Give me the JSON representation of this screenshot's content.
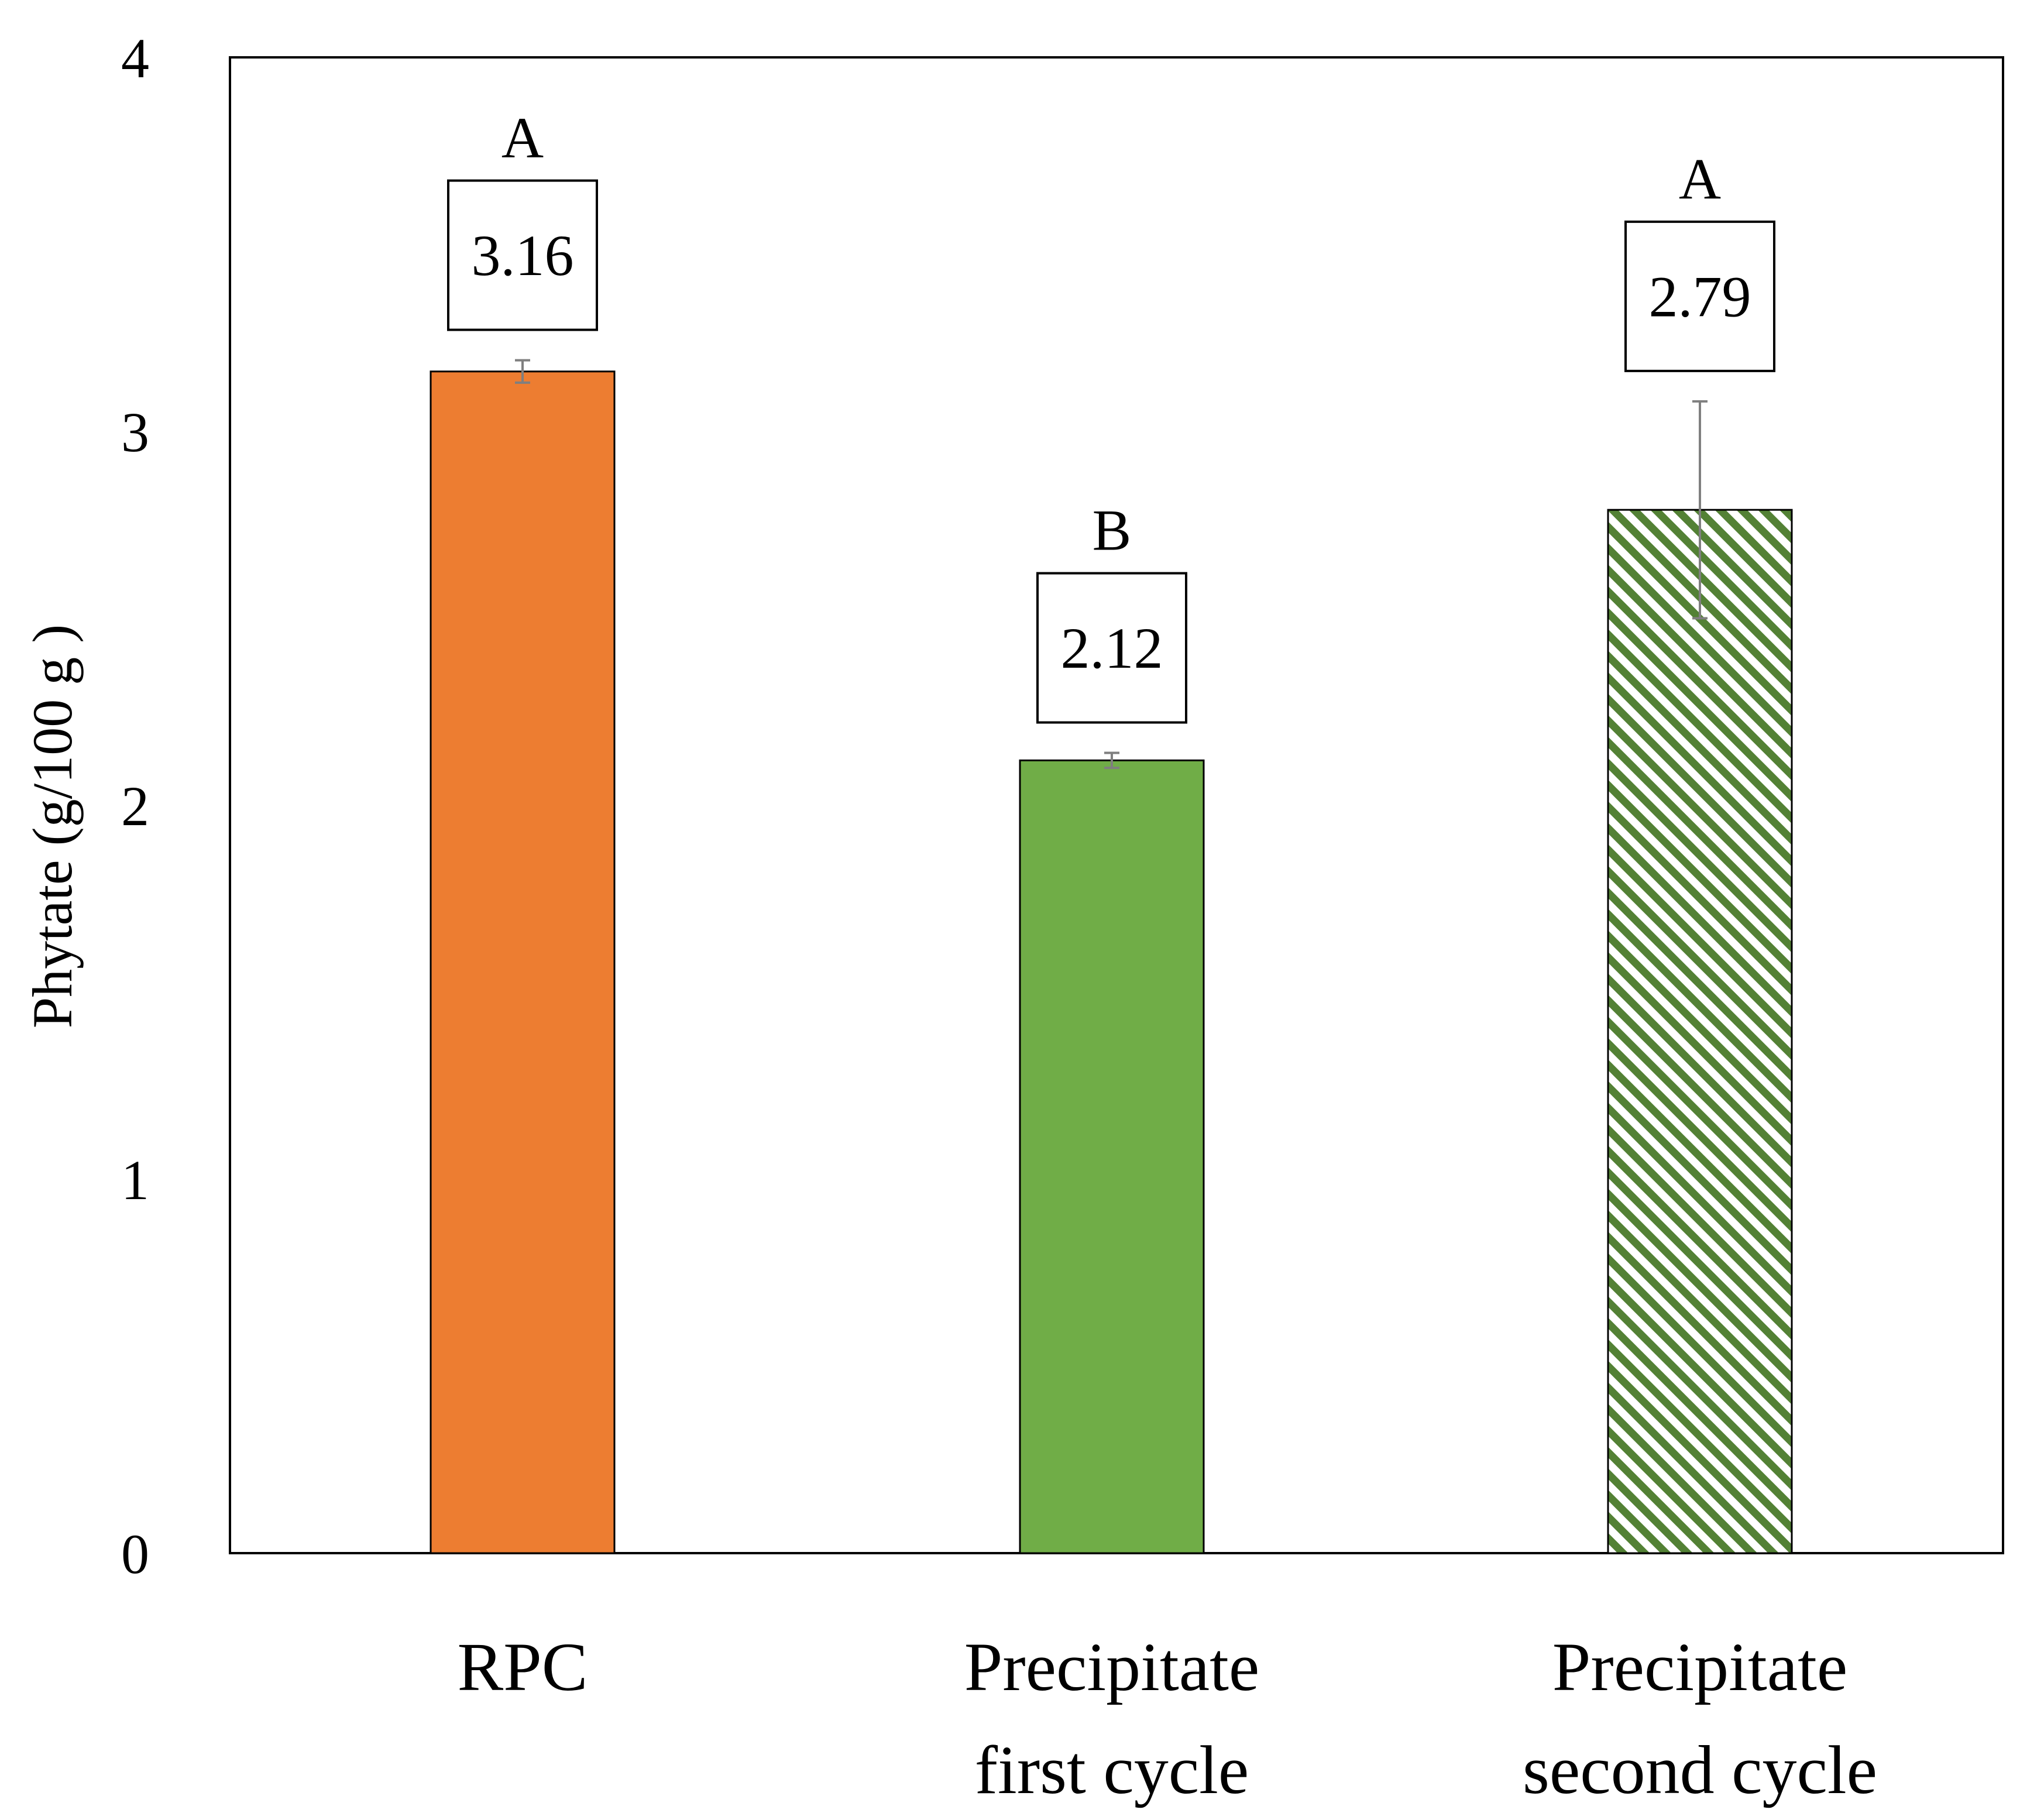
{
  "chart_data": {
    "type": "bar",
    "title": "",
    "xlabel": "",
    "ylabel": "Phytate (g/100 g )",
    "ylim": [
      0,
      4
    ],
    "yticks": [
      "0",
      "1",
      "2",
      "3",
      "4"
    ],
    "grid": false,
    "legend": "none",
    "categories": [
      [
        "RPC"
      ],
      [
        "Precipitate",
        "first cycle"
      ],
      [
        "Precipitate",
        "second cycle"
      ]
    ],
    "values": [
      3.16,
      2.12,
      2.79
    ],
    "value_labels": [
      "3.16",
      "2.12",
      "2.79"
    ],
    "error_bars": [
      0.03,
      0.02,
      0.29
    ],
    "significance_letters": [
      "A",
      "B",
      "A"
    ],
    "colors": [
      "#ED7D31",
      "#70AD47",
      "#538135"
    ],
    "fill_styles": [
      "solid",
      "solid",
      "hatched"
    ]
  }
}
